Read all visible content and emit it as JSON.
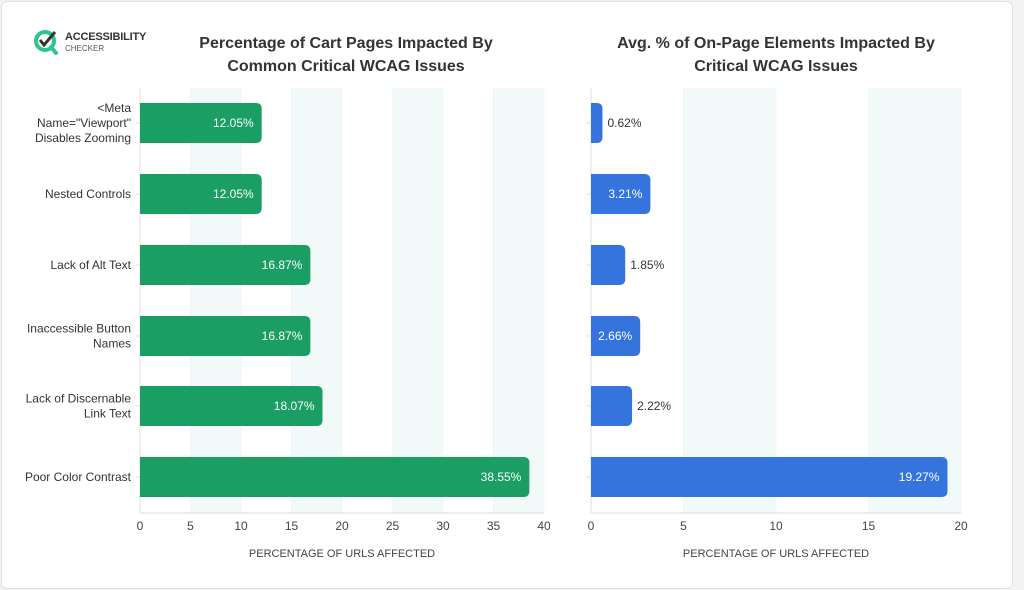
{
  "logo": {
    "line1": "ACCESSIBILITY",
    "line2": "CHECKER"
  },
  "colors": {
    "green": "#1a9e63",
    "blue": "#3574dd",
    "band": "#f1faf9",
    "text": "#333333"
  },
  "chart_data": [
    {
      "type": "bar",
      "orientation": "horizontal",
      "title": "Percentage of Cart Pages Impacted By Common Critical WCAG Issues",
      "title_lines": [
        "Percentage of Cart Pages Impacted By",
        "Common Critical WCAG Issues"
      ],
      "categories": [
        [
          "<Meta",
          "Name=\"Viewport\"",
          "Disables Zooming"
        ],
        [
          "Nested Controls"
        ],
        [
          "Lack of Alt Text"
        ],
        [
          "Inaccessible Button",
          "Names"
        ],
        [
          "Lack of Discernable",
          "Link Text"
        ],
        [
          "Poor Color Contrast"
        ]
      ],
      "values": [
        12.05,
        12.05,
        16.87,
        16.87,
        18.07,
        38.55
      ],
      "data_labels": [
        "12.05%",
        "12.05%",
        "16.87%",
        "16.87%",
        "18.07%",
        "38.55%"
      ],
      "xlabel": "PERCENTAGE OF URLS AFFECTED",
      "xlim": [
        0,
        40
      ],
      "xticks": [
        0,
        5,
        10,
        15,
        20,
        25,
        30,
        35,
        40
      ],
      "color": "#1a9e63",
      "grid": "alternating bands"
    },
    {
      "type": "bar",
      "orientation": "horizontal",
      "title": "Avg. % of On-Page Elements Impacted By Critical WCAG Issues",
      "title_lines": [
        "Avg. % of On-Page Elements Impacted By",
        "Critical WCAG Issues"
      ],
      "values": [
        0.62,
        3.21,
        1.85,
        2.66,
        2.22,
        19.27
      ],
      "data_labels": [
        "0.62%",
        "3.21%",
        "1.85%",
        "2.66%",
        "2.22%",
        "19.27%"
      ],
      "xlabel": "PERCENTAGE OF URLS AFFECTED",
      "xlim": [
        0,
        20
      ],
      "xticks": [
        0,
        5,
        10,
        15,
        20
      ],
      "color": "#3574dd",
      "grid": "alternating bands"
    }
  ]
}
